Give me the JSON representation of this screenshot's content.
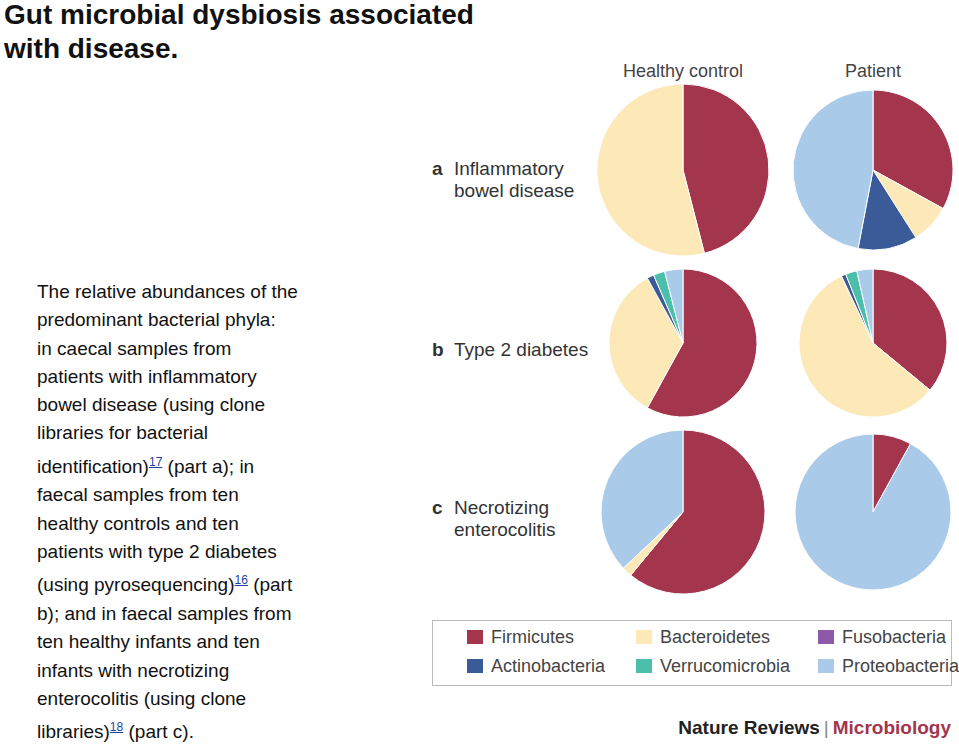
{
  "title": "Gut microbial dysbiosis associated with disease.",
  "caption_lines": [
    [
      "The relative abundances of the"
    ],
    [
      "predominant bacterial phyla:"
    ],
    [
      "in caecal samples from"
    ],
    [
      "patients with inflammatory"
    ],
    [
      "bowel disease (using clone"
    ],
    [
      "libraries for bacterial"
    ],
    [
      "identification)",
      {
        "ref": "17"
      },
      " (part a); in"
    ],
    [
      "faecal samples from ten"
    ],
    [
      "healthy controls and ten"
    ],
    [
      "patients with type 2 diabetes"
    ],
    [
      "(using pyrosequencing)",
      {
        "ref": "16"
      },
      " (part"
    ],
    [
      "b); and in faecal samples from"
    ],
    [
      "ten healthy infants and ten"
    ],
    [
      "infants with necrotizing"
    ],
    [
      "enterocolitis (using clone"
    ],
    [
      "libraries)",
      {
        "ref": "18"
      },
      " (part c)."
    ]
  ],
  "column_labels": [
    "Healthy control",
    "Patient"
  ],
  "panels": [
    {
      "letter": "a",
      "title": "Inflammatory bowel disease"
    },
    {
      "letter": "b",
      "title": "Type 2 diabetes"
    },
    {
      "letter": "c",
      "title": "Necrotizing enterocolitis"
    }
  ],
  "legend_items": [
    {
      "name": "Firmicutes",
      "color": "#a3354d"
    },
    {
      "name": "Bacteroidetes",
      "color": "#fde9b8"
    },
    {
      "name": "Fusobacteria",
      "color": "#8c5aa8"
    },
    {
      "name": "Actinobacteria",
      "color": "#3b5b98"
    },
    {
      "name": "Verrucomicrobia",
      "color": "#4cbfaa"
    },
    {
      "name": "Proteobacteria",
      "color": "#a9cbe9"
    }
  ],
  "source": {
    "journal": "Nature Reviews",
    "separator": "|",
    "section": "Microbiology"
  },
  "chart_data": [
    {
      "type": "pie",
      "panel": "a",
      "group": "Healthy control",
      "categories": [
        "Firmicutes",
        "Bacteroidetes"
      ],
      "values": [
        46,
        54
      ],
      "colors": [
        "#a3354d",
        "#fde9b8"
      ]
    },
    {
      "type": "pie",
      "panel": "a",
      "group": "Patient",
      "categories": [
        "Firmicutes",
        "Bacteroidetes",
        "Actinobacteria",
        "Proteobacteria"
      ],
      "values": [
        33,
        8,
        12,
        47
      ],
      "colors": [
        "#a3354d",
        "#fde9b8",
        "#3b5b98",
        "#a9cbe9"
      ]
    },
    {
      "type": "pie",
      "panel": "b",
      "group": "Healthy control",
      "categories": [
        "Firmicutes",
        "Bacteroidetes",
        "Actinobacteria",
        "Verrucomicrobia",
        "Proteobacteria"
      ],
      "values": [
        58,
        34,
        1.5,
        2.5,
        4
      ],
      "colors": [
        "#a3354d",
        "#fde9b8",
        "#3b5b98",
        "#4cbfaa",
        "#a9cbe9"
      ]
    },
    {
      "type": "pie",
      "panel": "b",
      "group": "Patient",
      "categories": [
        "Firmicutes",
        "Bacteroidetes",
        "Actinobacteria",
        "Verrucomicrobia",
        "Proteobacteria"
      ],
      "values": [
        36,
        57,
        1,
        2.5,
        3.5
      ],
      "colors": [
        "#a3354d",
        "#fde9b8",
        "#3b5b98",
        "#4cbfaa",
        "#a9cbe9"
      ]
    },
    {
      "type": "pie",
      "panel": "c",
      "group": "Healthy control",
      "categories": [
        "Firmicutes",
        "Bacteroidetes",
        "Proteobacteria"
      ],
      "values": [
        61,
        2,
        37
      ],
      "colors": [
        "#a3354d",
        "#fde9b8",
        "#a9cbe9"
      ]
    },
    {
      "type": "pie",
      "panel": "c",
      "group": "Patient",
      "categories": [
        "Firmicutes",
        "Proteobacteria"
      ],
      "values": [
        8,
        92
      ],
      "colors": [
        "#a3354d",
        "#a9cbe9"
      ]
    }
  ]
}
